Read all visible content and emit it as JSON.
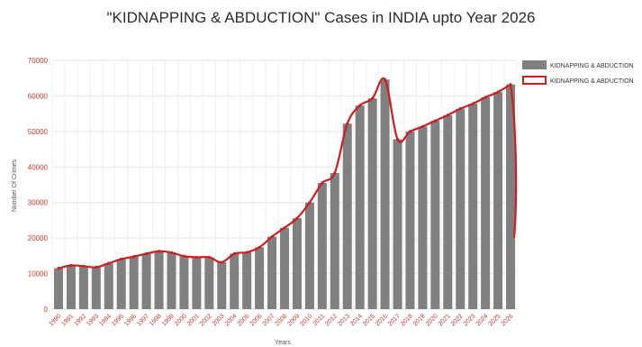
{
  "chart_data": {
    "type": "bar",
    "title": "\"KIDNAPPING & ABDUCTION\" Cases in INDIA upto Year 2026",
    "xlabel": "Years",
    "ylabel": "Number Of Crimes",
    "ylim": [
      0,
      70000
    ],
    "yticks": [
      "0",
      "10000",
      "20000",
      "30000",
      "40000",
      "50000",
      "60000",
      "70000"
    ],
    "grid": true,
    "legend_position": "top-right",
    "categories": [
      "1990",
      "1991",
      "1992",
      "1993",
      "1994",
      "1995",
      "1996",
      "1997",
      "1998",
      "1999",
      "2000",
      "2001",
      "2002",
      "2003",
      "2004",
      "2005",
      "2006",
      "2007",
      "2008",
      "2009",
      "2010",
      "2011",
      "2012",
      "2013",
      "2014",
      "2015",
      "2016",
      "2017",
      "2018",
      "2019",
      "2020",
      "2021",
      "2022",
      "2023",
      "2024",
      "2025",
      "2026"
    ],
    "series": [
      {
        "name": "KIDNAPPING & ABDUCTION",
        "kind": "bar",
        "color": "#808080",
        "values": [
          11500,
          12300,
          12100,
          11800,
          12900,
          14100,
          14800,
          15600,
          16300,
          15900,
          14900,
          14600,
          14600,
          13200,
          15600,
          16000,
          17400,
          20400,
          22900,
          25600,
          30000,
          35500,
          38300,
          52200,
          57300,
          59300,
          64600,
          47800,
          50000,
          51400,
          53000,
          54600,
          56400,
          57800,
          59600,
          61100,
          63200
        ]
      },
      {
        "name": "KIDNAPPING & ABDUCTION",
        "kind": "line",
        "color": "#cc1f1f",
        "values": [
          11500,
          12300,
          12100,
          11800,
          12900,
          14100,
          14800,
          15600,
          16300,
          15900,
          14900,
          14600,
          14600,
          13200,
          15600,
          16000,
          17400,
          20400,
          22900,
          25600,
          30000,
          35500,
          38300,
          52200,
          57300,
          59300,
          64600,
          47800,
          50000,
          51400,
          53000,
          54600,
          56400,
          57800,
          59600,
          61100,
          63200
        ]
      }
    ]
  }
}
